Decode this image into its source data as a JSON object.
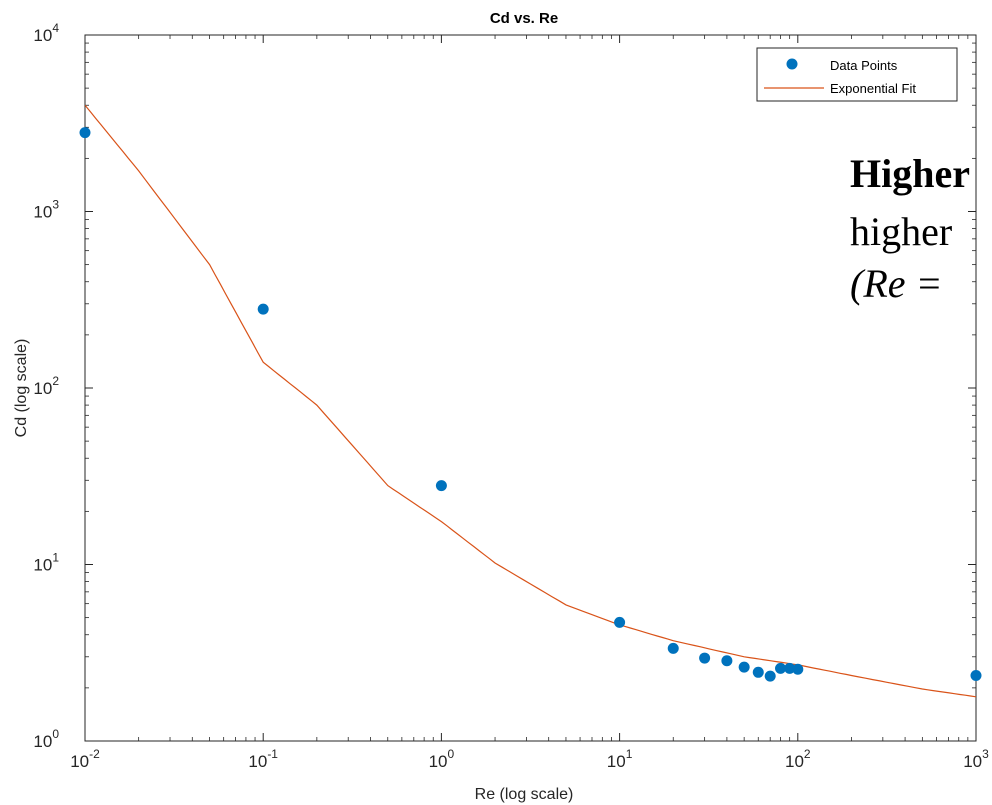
{
  "chart_data": {
    "type": "scatter",
    "title": "Cd vs. Re",
    "xlabel": "Re (log scale)",
    "ylabel": "Cd (log scale)",
    "xscale": "log",
    "yscale": "log",
    "xlim": [
      0.01,
      1000
    ],
    "ylim": [
      1,
      10000
    ],
    "x_ticks": [
      {
        "value": 0.01,
        "base": "10",
        "exp": "-2"
      },
      {
        "value": 0.1,
        "base": "10",
        "exp": "-1"
      },
      {
        "value": 1,
        "base": "10",
        "exp": "0"
      },
      {
        "value": 10,
        "base": "10",
        "exp": "1"
      },
      {
        "value": 100,
        "base": "10",
        "exp": "2"
      },
      {
        "value": 1000,
        "base": "10",
        "exp": "3"
      }
    ],
    "y_ticks": [
      {
        "value": 1,
        "base": "10",
        "exp": "0"
      },
      {
        "value": 10,
        "base": "10",
        "exp": "1"
      },
      {
        "value": 100,
        "base": "10",
        "exp": "2"
      },
      {
        "value": 1000,
        "base": "10",
        "exp": "3"
      },
      {
        "value": 10000,
        "base": "10",
        "exp": "4"
      }
    ],
    "grid": false,
    "legend_position": "top-right",
    "series": [
      {
        "name": "Data Points",
        "type": "scatter",
        "color": "#0072BD",
        "x": [
          0.01,
          0.1,
          1,
          10,
          20,
          30,
          40,
          50,
          60,
          70,
          80,
          90,
          100,
          1000
        ],
        "y": [
          2800,
          280,
          28,
          4.7,
          3.35,
          2.95,
          2.85,
          2.62,
          2.45,
          2.33,
          2.58,
          2.58,
          2.55,
          2.35
        ]
      },
      {
        "name": "Exponential Fit",
        "type": "line",
        "color": "#D95319",
        "x": [
          0.01,
          0.02,
          0.05,
          0.1,
          0.2,
          0.5,
          1,
          2,
          5,
          10,
          20,
          50,
          100,
          200,
          500,
          1000
        ],
        "y": [
          4000,
          1700,
          500,
          140,
          80,
          28,
          17.5,
          10.2,
          5.9,
          4.55,
          3.7,
          3.0,
          2.7,
          2.35,
          1.97,
          1.78
        ]
      }
    ]
  },
  "slide_text": {
    "line1": "Higher",
    "line2": "higher",
    "line3": "(Re ="
  }
}
